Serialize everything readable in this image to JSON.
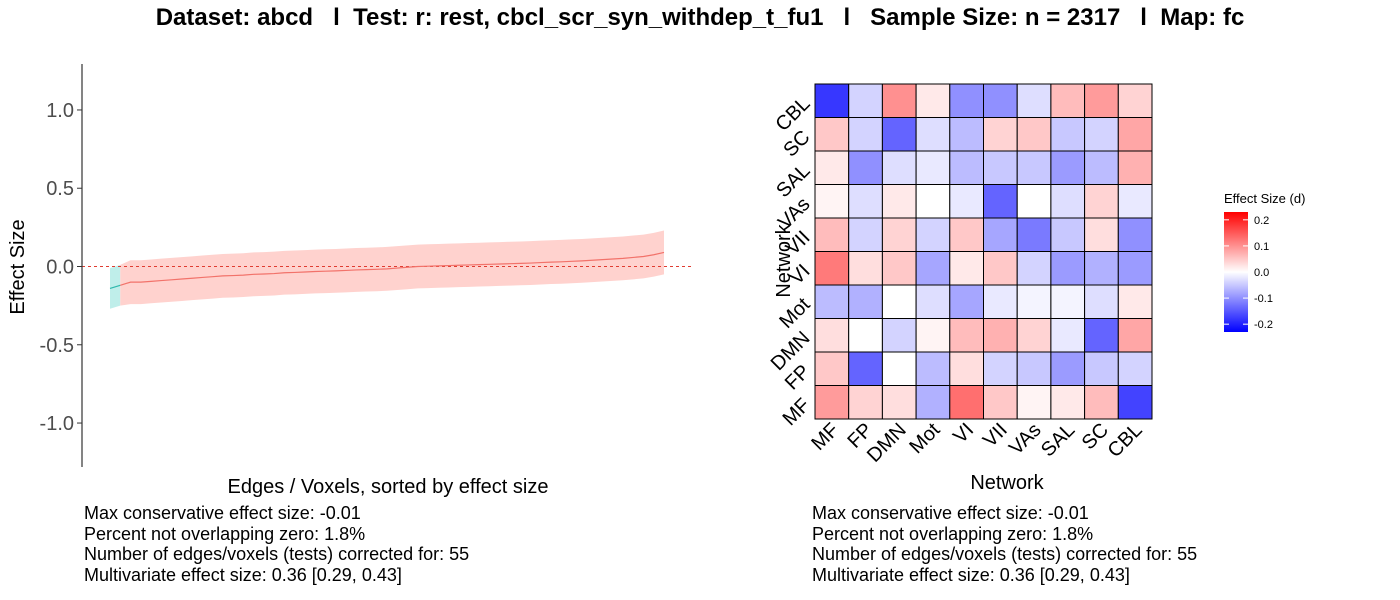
{
  "title": "Dataset: abcd   l  Test: r: rest, cbcl_scr_syn_withdep_t_fu1   l   Sample Size: n = 2317   l  Map: fc",
  "chart_data": [
    {
      "type": "line",
      "name": "effect-size-spectrum",
      "xlabel": "Edges / Voxels, sorted by effect size",
      "ylabel": "Effect Size",
      "ylim": [
        -1.3,
        1.3
      ],
      "yticks": [
        1.0,
        0.5,
        0.0,
        -0.5,
        -1.0
      ],
      "ytick_labels": [
        "1.0",
        "0.5",
        "0.0",
        "-0.5",
        "-1.0"
      ],
      "reference_line": 0.0,
      "n_points": 55,
      "estimate": [
        -0.14,
        -0.12,
        -0.1,
        -0.1,
        -0.095,
        -0.09,
        -0.085,
        -0.08,
        -0.075,
        -0.07,
        -0.065,
        -0.06,
        -0.058,
        -0.055,
        -0.05,
        -0.048,
        -0.045,
        -0.04,
        -0.038,
        -0.035,
        -0.032,
        -0.03,
        -0.028,
        -0.025,
        -0.022,
        -0.02,
        -0.018,
        -0.015,
        -0.01,
        -0.005,
        0.0,
        0.002,
        0.004,
        0.006,
        0.008,
        0.01,
        0.012,
        0.014,
        0.016,
        0.018,
        0.02,
        0.022,
        0.025,
        0.028,
        0.03,
        0.033,
        0.036,
        0.04,
        0.044,
        0.048,
        0.052,
        0.058,
        0.064,
        0.075,
        0.09
      ],
      "ci_lower": [
        -0.27,
        -0.25,
        -0.24,
        -0.24,
        -0.235,
        -0.23,
        -0.225,
        -0.22,
        -0.215,
        -0.21,
        -0.205,
        -0.2,
        -0.198,
        -0.195,
        -0.19,
        -0.188,
        -0.185,
        -0.18,
        -0.178,
        -0.175,
        -0.172,
        -0.17,
        -0.168,
        -0.165,
        -0.162,
        -0.16,
        -0.158,
        -0.155,
        -0.15,
        -0.145,
        -0.14,
        -0.138,
        -0.136,
        -0.134,
        -0.132,
        -0.13,
        -0.128,
        -0.126,
        -0.124,
        -0.122,
        -0.12,
        -0.118,
        -0.115,
        -0.112,
        -0.11,
        -0.107,
        -0.104,
        -0.1,
        -0.096,
        -0.092,
        -0.088,
        -0.082,
        -0.076,
        -0.065,
        -0.05
      ],
      "ci_upper": [
        -0.01,
        0.01,
        0.04,
        0.04,
        0.045,
        0.05,
        0.055,
        0.06,
        0.065,
        0.07,
        0.075,
        0.08,
        0.082,
        0.085,
        0.09,
        0.092,
        0.095,
        0.1,
        0.102,
        0.105,
        0.108,
        0.11,
        0.112,
        0.115,
        0.118,
        0.12,
        0.122,
        0.125,
        0.13,
        0.135,
        0.14,
        0.142,
        0.144,
        0.146,
        0.148,
        0.15,
        0.152,
        0.154,
        0.156,
        0.158,
        0.16,
        0.162,
        0.165,
        0.168,
        0.17,
        0.173,
        0.176,
        0.18,
        0.184,
        0.188,
        0.192,
        0.198,
        0.204,
        0.215,
        0.23
      ],
      "colors": {
        "negative_line": "#2fb9ad",
        "negative_band": "#bfeeea",
        "positive_line": "#f2726a",
        "positive_band": "#ffd2ce",
        "reference": "#e03c31"
      }
    },
    {
      "type": "heatmap",
      "name": "network-effect-matrix",
      "xlabel": "Network",
      "ylabel": "Network",
      "x_categories": [
        "MF",
        "FP",
        "DMN",
        "Mot",
        "VI",
        "VII",
        "VAs",
        "SAL",
        "SC",
        "CBL"
      ],
      "y_categories_top_to_bottom": [
        "CBL",
        "SC",
        "SAL",
        "VAs",
        "VII",
        "VI",
        "Mot",
        "DMN",
        "FP",
        "MF"
      ],
      "values_top_to_bottom": [
        [
          -0.18,
          -0.04,
          0.1,
          0.02,
          -0.1,
          -0.1,
          -0.03,
          0.06,
          0.09,
          0.04
        ],
        [
          0.05,
          -0.04,
          -0.14,
          -0.03,
          -0.06,
          0.04,
          0.05,
          -0.05,
          -0.04,
          0.08
        ],
        [
          0.02,
          -0.1,
          -0.03,
          -0.02,
          -0.06,
          -0.05,
          -0.05,
          -0.09,
          -0.06,
          0.07
        ],
        [
          0.01,
          -0.03,
          0.02,
          0.0,
          -0.02,
          -0.14,
          0.0,
          -0.03,
          0.04,
          -0.02
        ],
        [
          0.06,
          -0.04,
          0.04,
          -0.04,
          0.05,
          -0.08,
          -0.12,
          -0.05,
          0.03,
          -0.1
        ],
        [
          0.12,
          0.03,
          0.05,
          -0.08,
          0.02,
          0.05,
          -0.04,
          -0.09,
          -0.07,
          -0.09
        ],
        [
          -0.06,
          -0.07,
          0.0,
          -0.03,
          -0.08,
          -0.02,
          -0.01,
          -0.01,
          -0.03,
          0.02
        ],
        [
          0.03,
          0.0,
          -0.04,
          0.01,
          0.06,
          0.07,
          0.04,
          -0.02,
          -0.14,
          0.08
        ],
        [
          0.05,
          -0.14,
          0.0,
          -0.06,
          0.03,
          -0.04,
          -0.05,
          -0.09,
          -0.05,
          -0.04
        ],
        [
          0.09,
          0.04,
          0.03,
          -0.07,
          0.13,
          0.05,
          0.01,
          0.02,
          0.06,
          -0.17
        ]
      ],
      "legend": {
        "title": "Effect Size (d)",
        "range": [
          -0.23,
          0.23
        ],
        "ticks": [
          0.2,
          0.1,
          0.0,
          -0.1,
          -0.2
        ],
        "tick_labels": [
          "0.2",
          "0.1",
          "0.0",
          "-0.1",
          "-0.2"
        ],
        "colors": {
          "low": "#0000ff",
          "mid": "#ffffff",
          "high": "#ff0000"
        }
      }
    }
  ],
  "stats_left": [
    "Max conservative effect size: -0.01",
    "Percent not overlapping zero: 1.8%",
    "Number of edges/voxels (tests) corrected for: 55",
    "Multivariate effect size: 0.36 [0.29, 0.43]"
  ],
  "stats_right": [
    "Max conservative effect size: -0.01",
    "Percent not overlapping zero: 1.8%",
    "Number of edges/voxels (tests) corrected for: 55",
    "Multivariate effect size: 0.36 [0.29, 0.43]"
  ]
}
